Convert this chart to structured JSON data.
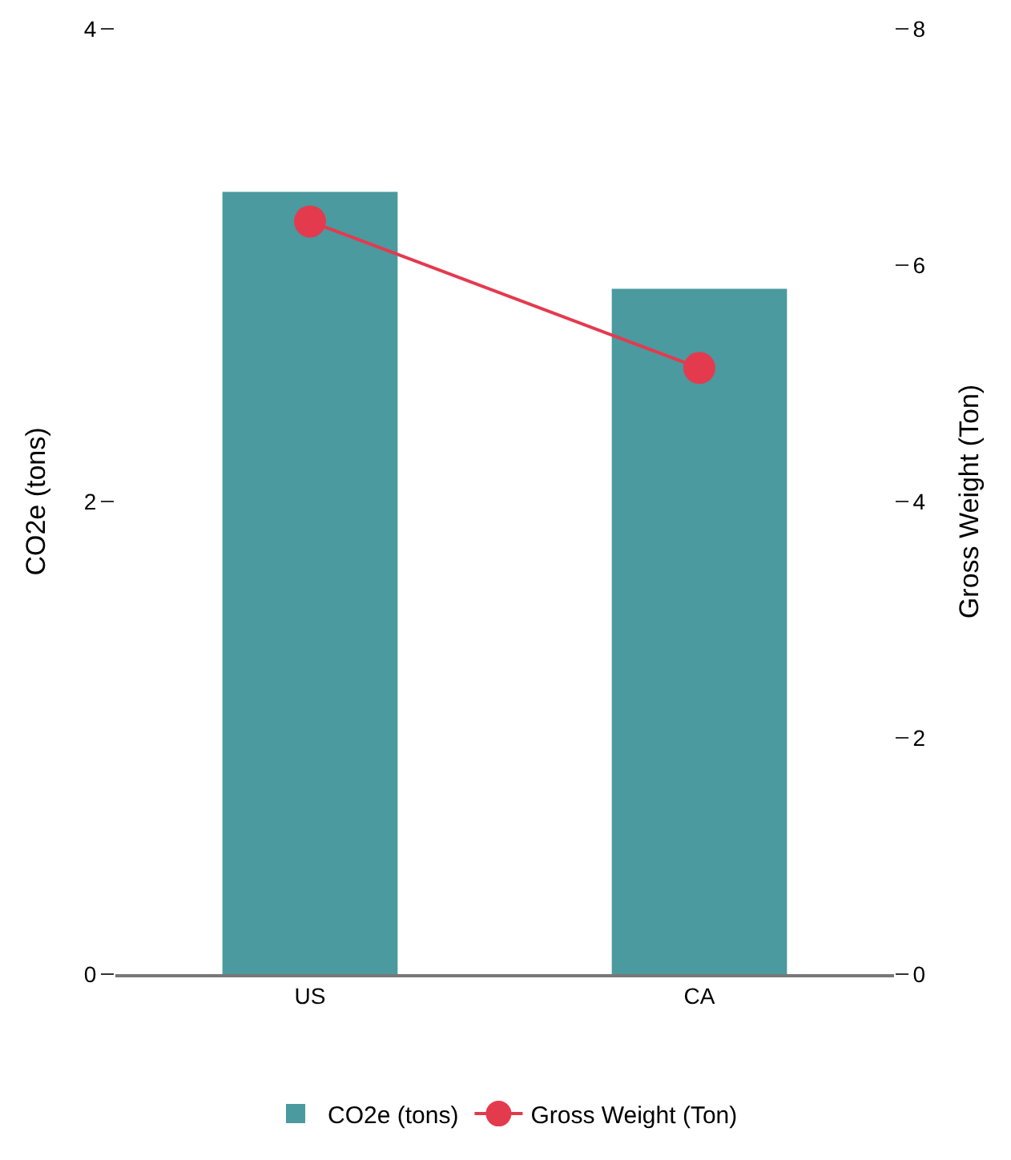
{
  "chart_data": {
    "type": "bar",
    "ylabel": "CO2e (tons)",
    "y2label": "Gross Weight (Ton)",
    "categories": [
      "US",
      "CA"
    ],
    "series": [
      {
        "name": "CO2e (tons)",
        "color": "#4a9a9f",
        "values": [
          3.31,
          2.9
        ]
      },
      {
        "name": "Gross Weight (Ton)",
        "type": "line",
        "axis": "y2",
        "color": "#e43a4e",
        "values": [
          6.37,
          5.13
        ]
      }
    ],
    "ylim": [
      0,
      4
    ],
    "yticks": [
      0,
      2,
      4
    ],
    "y2lim": [
      0,
      8
    ],
    "y2ticks": [
      0,
      2,
      4,
      6,
      8
    ],
    "grid": false,
    "legend": "bottom",
    "marker": "circle"
  }
}
